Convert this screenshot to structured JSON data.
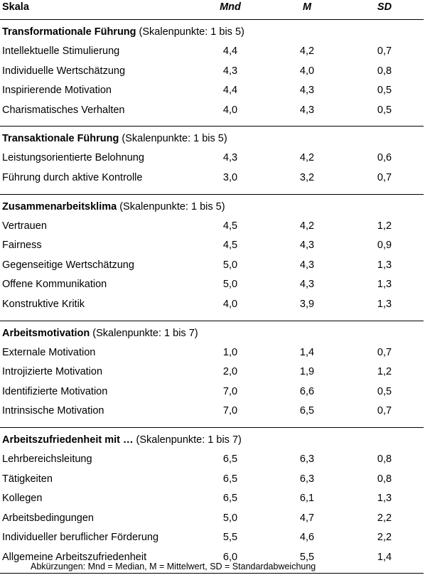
{
  "header": {
    "label": "Skala",
    "mnd": "Mnd",
    "m": "M",
    "sd": "SD"
  },
  "sections": [
    {
      "title": "Transformationale Führung",
      "scale": "(Skalenpunkte: 1 bis 5)",
      "rows": [
        {
          "label": "Intellektuelle Stimulierung",
          "mnd": "4,4",
          "m": "4,2",
          "sd": "0,7"
        },
        {
          "label": "Individuelle Wertschätzung",
          "mnd": "4,3",
          "m": "4,0",
          "sd": "0,8"
        },
        {
          "label": "Inspirierende Motivation",
          "mnd": "4,4",
          "m": "4,3",
          "sd": "0,5"
        },
        {
          "label": "Charismatisches Verhalten",
          "mnd": "4,0",
          "m": "4,3",
          "sd": "0,5"
        }
      ]
    },
    {
      "title": "Transaktionale Führung",
      "scale": "(Skalenpunkte: 1 bis 5)",
      "rows": [
        {
          "label": "Leistungsorientierte Belohnung",
          "mnd": "4,3",
          "m": "4,2",
          "sd": "0,6"
        },
        {
          "label": "Führung durch aktive Kontrolle",
          "mnd": "3,0",
          "m": "3,2",
          "sd": "0,7"
        }
      ]
    },
    {
      "title": "Zusammenarbeitsklima",
      "scale": "(Skalenpunkte: 1 bis 5)",
      "rows": [
        {
          "label": "Vertrauen",
          "mnd": "4,5",
          "m": "4,2",
          "sd": "1,2"
        },
        {
          "label": "Fairness",
          "mnd": "4,5",
          "m": "4,3",
          "sd": "0,9"
        },
        {
          "label": "Gegenseitige Wertschätzung",
          "mnd": "5,0",
          "m": "4,3",
          "sd": "1,3"
        },
        {
          "label": "Offene Kommunikation",
          "mnd": "5,0",
          "m": "4,3",
          "sd": "1,3"
        },
        {
          "label": "Konstruktive Kritik",
          "mnd": "4,0",
          "m": "3,9",
          "sd": "1,3"
        }
      ]
    },
    {
      "title": "Arbeitsmotivation",
      "scale": "(Skalenpunkte: 1 bis 7)",
      "rows": [
        {
          "label": "Externale Motivation",
          "mnd": "1,0",
          "m": "1,4",
          "sd": "0,7"
        },
        {
          "label": "Introjizierte Motivation",
          "mnd": "2,0",
          "m": "1,9",
          "sd": "1,2"
        },
        {
          "label": "Identifizierte Motivation",
          "mnd": "7,0",
          "m": "6,6",
          "sd": "0,5"
        },
        {
          "label": "Intrinsische Motivation",
          "mnd": "7,0",
          "m": "6,5",
          "sd": "0,7"
        }
      ]
    },
    {
      "title": "Arbeitszufriedenheit mit …",
      "scale": "(Skalenpunkte: 1 bis 7)",
      "rows": [
        {
          "label": "Lehrbereichsleitung",
          "mnd": "6,5",
          "m": "6,3",
          "sd": "0,8"
        },
        {
          "label": "Tätigkeiten",
          "mnd": "6,5",
          "m": "6,3",
          "sd": "0,8"
        },
        {
          "label": "Kollegen",
          "mnd": "6,5",
          "m": "6,1",
          "sd": "1,3"
        },
        {
          "label": "Arbeitsbedingungen",
          "mnd": "5,0",
          "m": "4,7",
          "sd": "2,2"
        },
        {
          "label": "Individueller beruflicher Förderung",
          "mnd": "5,5",
          "m": "4,6",
          "sd": "2,2"
        },
        {
          "label": "Allgemeine Arbeitszufriedenheit",
          "mnd": "6,0",
          "m": "5,5",
          "sd": "1,4"
        }
      ]
    }
  ],
  "footnote": "Abkürzungen: Mnd = Median, M = Mittelwert, SD = Standardabweichung"
}
